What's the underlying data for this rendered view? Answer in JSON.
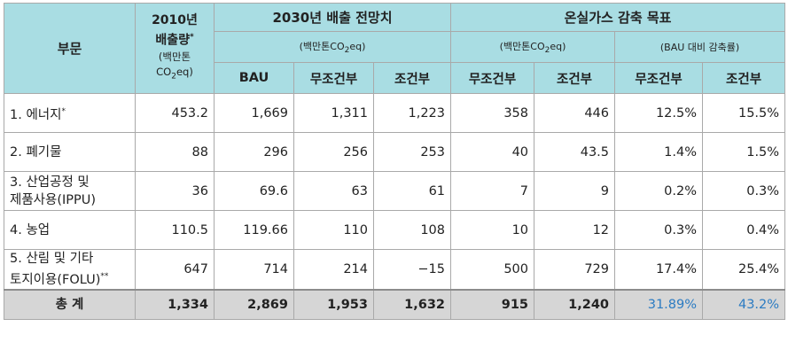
{
  "header": {
    "sector": "부문",
    "year_2010": "2010년",
    "emissions_label": "배출량",
    "emissions_sup": "*",
    "unit_small_a": "(백만톤",
    "unit_small_b": "CO",
    "unit_small_sub": "2",
    "unit_small_c": "eq)",
    "group_2030": "2030년 배출 전망치",
    "group_target": "온실가스 감축 목표",
    "unit_a": "(백만톤CO",
    "unit_sub": "2",
    "unit_b": "eq)",
    "unit_rate": "(BAU 대비 감축률)",
    "col_bau": "BAU",
    "col_uncond": "무조건부",
    "col_cond": "조건부"
  },
  "rows": [
    {
      "label": "1. 에너지",
      "label_sup": "*",
      "label2": "",
      "v2010": "453.2",
      "bau": "1,669",
      "bau_uncond": "1,311",
      "bau_cond": "1,223",
      "red_uncond": "358",
      "red_cond": "446",
      "rate_uncond": "12.5%",
      "rate_cond": "15.5%"
    },
    {
      "label": "2. 폐기물",
      "label_sup": "",
      "label2": "",
      "v2010": "88",
      "bau": "296",
      "bau_uncond": "256",
      "bau_cond": "253",
      "red_uncond": "40",
      "red_cond": "43.5",
      "rate_uncond": "1.4%",
      "rate_cond": "1.5%"
    },
    {
      "label": "3. 산업공정 및",
      "label_sup": "",
      "label2": "제품사용(IPPU)",
      "v2010": "36",
      "bau": "69.6",
      "bau_uncond": "63",
      "bau_cond": "61",
      "red_uncond": "7",
      "red_cond": "9",
      "rate_uncond": "0.2%",
      "rate_cond": "0.3%"
    },
    {
      "label": "4. 농업",
      "label_sup": "",
      "label2": "",
      "v2010": "110.5",
      "bau": "119.66",
      "bau_uncond": "110",
      "bau_cond": "108",
      "red_uncond": "10",
      "red_cond": "12",
      "rate_uncond": "0.3%",
      "rate_cond": "0.4%"
    },
    {
      "label": "5. 산림 및 기타",
      "label_sup": "",
      "label2": "토지이용(FOLU)",
      "label2_sup": "**",
      "v2010": "647",
      "bau": "714",
      "bau_uncond": "214",
      "bau_cond": "−15",
      "red_uncond": "500",
      "red_cond": "729",
      "rate_uncond": "17.4%",
      "rate_cond": "25.4%"
    }
  ],
  "total": {
    "label": "총 계",
    "v2010": "1,334",
    "bau": "2,869",
    "bau_uncond": "1,953",
    "bau_cond": "1,632",
    "red_uncond": "915",
    "red_cond": "1,240",
    "rate_uncond": "31.89%",
    "rate_cond": "43.2%",
    "highlight_color": "#2b7bc2"
  },
  "colors": {
    "header_bg": "#a9dde3",
    "total_bg": "#d6d6d6",
    "border": "#a9a9a9"
  }
}
